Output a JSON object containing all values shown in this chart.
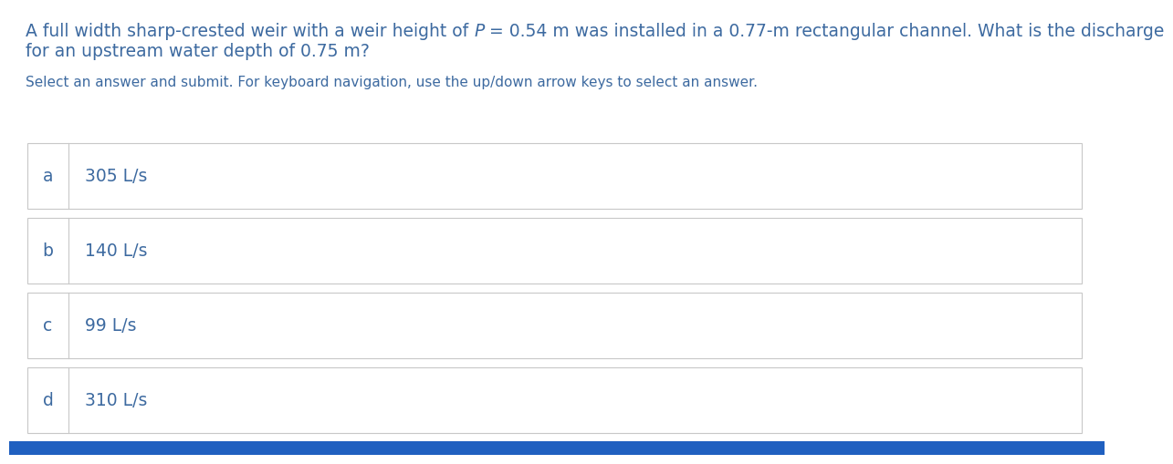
{
  "title_part1": "A full width sharp-crested weir with a weir height of ",
  "title_italic": "P",
  "title_part2": " = 0.54 m was installed in a 0.77-m rectangular channel. What is the discharge",
  "title_line2": "for an upstream water depth of 0.75 m?",
  "subtitle": "Select an answer and submit. For keyboard navigation, use the up/down arrow keys to select an answer.",
  "options": [
    {
      "letter": "a",
      "text": "305 L/s"
    },
    {
      "letter": "b",
      "text": "140 L/s"
    },
    {
      "letter": "c",
      "text": "99 L/s"
    },
    {
      "letter": "d",
      "text": "310 L/s"
    }
  ],
  "bg_color": "#ffffff",
  "text_color": "#3d6aa0",
  "border_color": "#c8c8c8",
  "bottom_bar_color": "#2060c0",
  "title_fontsize": 13.5,
  "subtitle_fontsize": 11.0,
  "option_fontsize": 13.5,
  "letter_fontsize": 13.5
}
